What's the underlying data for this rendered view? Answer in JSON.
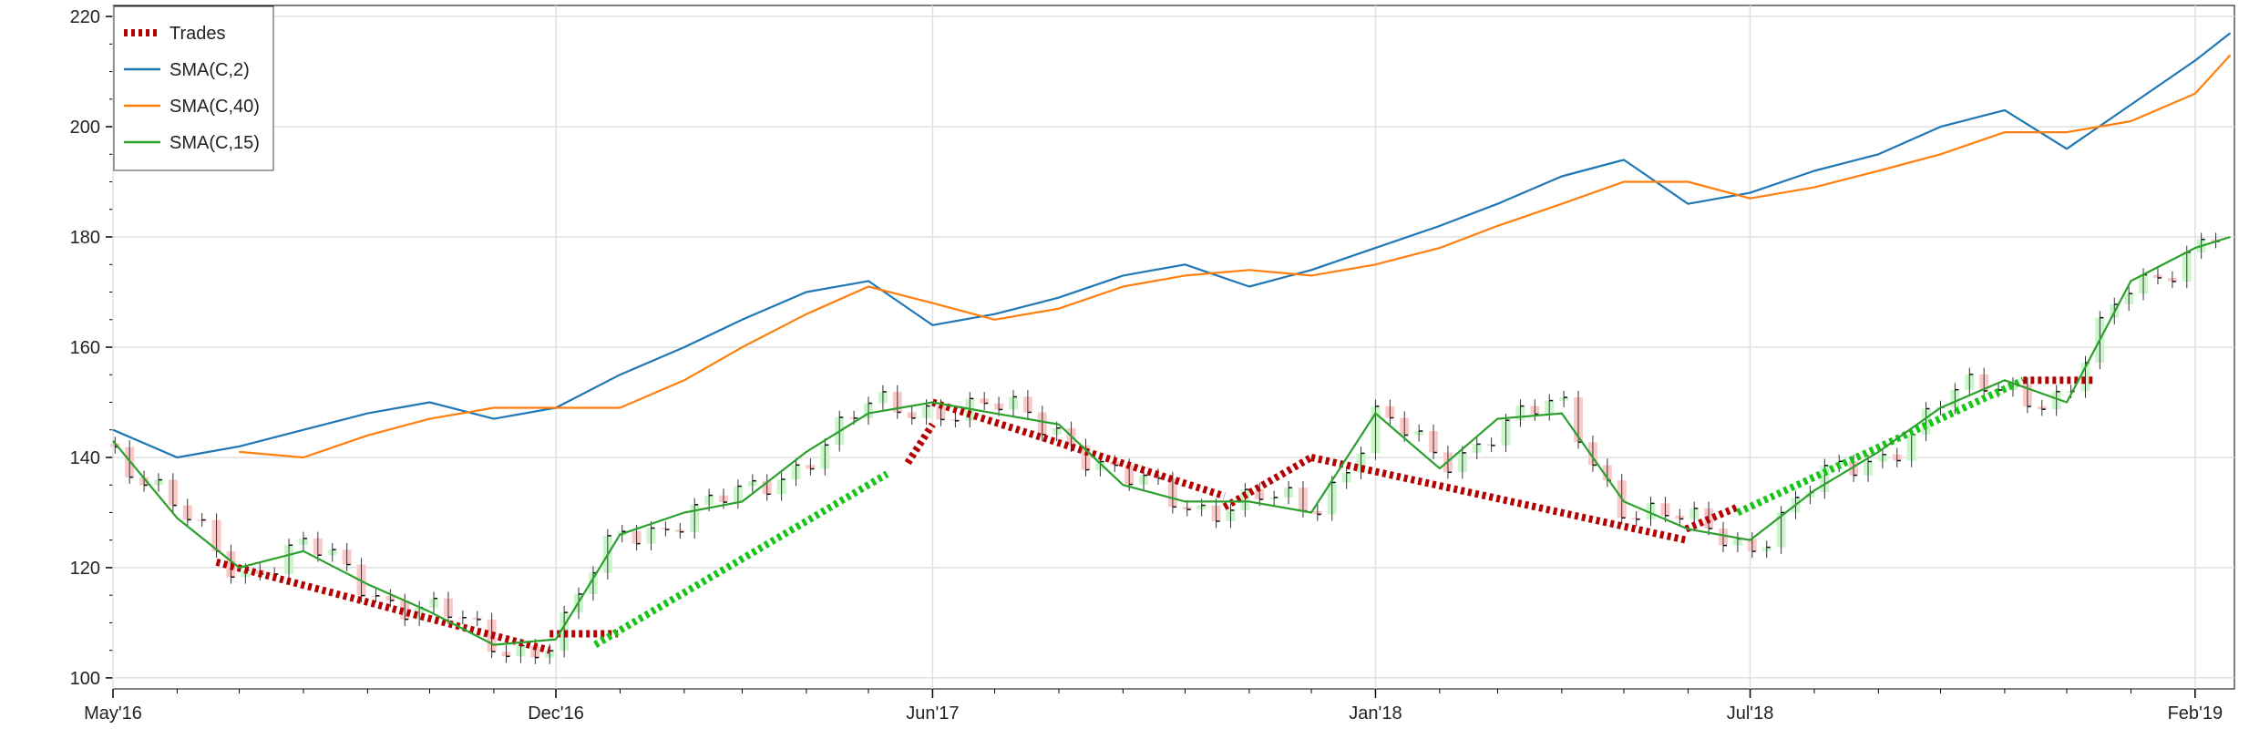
{
  "chart_data": {
    "type": "line",
    "title": "",
    "xlabel": "",
    "ylabel": "",
    "x_ticks": [
      "May'16",
      "Dec'16",
      "Jun'17",
      "Jan'18",
      "Jul'18",
      "Feb'19"
    ],
    "y_ticks": [
      "100",
      "120",
      "140",
      "160",
      "180",
      "200",
      "220"
    ],
    "xlim": [
      "2016-05-01",
      "2019-02-20"
    ],
    "ylim": [
      98,
      222
    ],
    "grid": true,
    "legend_position": "top-left",
    "legend": [
      "Trades",
      "SMA(C,2)",
      "SMA(C,40)",
      "SMA(C,15)"
    ],
    "colors": {
      "trade_loss": "#b30000",
      "trade_win": "#18c418",
      "sma2": "#1f77b4",
      "sma40": "#ff7f0e",
      "sma15": "#2ca02c",
      "up_bar": "#c9f7c9",
      "down_bar": "#fbc8c8",
      "grid": "#e0e0e0"
    },
    "series": [
      {
        "name": "SMA(C,2)",
        "x": [
          "2016-05-01",
          "2016-06-01",
          "2016-07-01",
          "2016-08-01",
          "2016-09-01",
          "2016-10-01",
          "2016-11-01",
          "2016-12-01",
          "2017-01-01",
          "2017-02-01",
          "2017-03-01",
          "2017-04-01",
          "2017-05-01",
          "2017-06-01",
          "2017-07-01",
          "2017-08-01",
          "2017-09-01",
          "2017-10-01",
          "2017-11-01",
          "2017-12-01",
          "2018-01-01",
          "2018-02-01",
          "2018-03-01",
          "2018-04-01",
          "2018-05-01",
          "2018-06-01",
          "2018-07-01",
          "2018-08-01",
          "2018-09-01",
          "2018-10-01",
          "2018-11-01",
          "2018-12-01",
          "2019-01-01",
          "2019-02-01",
          "2019-02-18"
        ],
        "values": [
          145,
          140,
          142,
          145,
          148,
          150,
          147,
          149,
          155,
          160,
          165,
          170,
          172,
          164,
          166,
          169,
          173,
          175,
          171,
          174,
          178,
          182,
          186,
          191,
          194,
          186,
          188,
          192,
          195,
          200,
          203,
          196,
          204,
          212,
          217
        ]
      },
      {
        "name": "SMA(C,40)",
        "x": [
          "2016-07-01",
          "2016-08-01",
          "2016-09-01",
          "2016-10-01",
          "2016-11-01",
          "2016-12-01",
          "2017-01-01",
          "2017-02-01",
          "2017-03-01",
          "2017-04-01",
          "2017-05-01",
          "2017-06-01",
          "2017-07-01",
          "2017-08-01",
          "2017-09-01",
          "2017-10-01",
          "2017-11-01",
          "2017-12-01",
          "2018-01-01",
          "2018-02-01",
          "2018-03-01",
          "2018-04-01",
          "2018-05-01",
          "2018-06-01",
          "2018-07-01",
          "2018-08-01",
          "2018-09-01",
          "2018-10-01",
          "2018-11-01",
          "2018-12-01",
          "2019-01-01",
          "2019-02-01",
          "2019-02-18"
        ],
        "values": [
          141,
          140,
          144,
          147,
          149,
          149,
          149,
          154,
          160,
          166,
          171,
          168,
          165,
          167,
          171,
          173,
          174,
          173,
          175,
          178,
          182,
          186,
          190,
          190,
          187,
          189,
          192,
          195,
          199,
          199,
          201,
          206,
          213
        ]
      },
      {
        "name": "SMA(C,15)",
        "x": [
          "2016-05-01",
          "2016-06-01",
          "2016-07-01",
          "2016-08-01",
          "2016-09-01",
          "2016-10-01",
          "2016-11-01",
          "2016-12-01",
          "2017-01-01",
          "2017-02-01",
          "2017-03-01",
          "2017-04-01",
          "2017-05-01",
          "2017-06-01",
          "2017-07-01",
          "2017-08-01",
          "2017-09-01",
          "2017-10-01",
          "2017-11-01",
          "2017-12-01",
          "2018-01-01",
          "2018-02-01",
          "2018-03-01",
          "2018-04-01",
          "2018-05-01",
          "2018-06-01",
          "2018-07-01",
          "2018-08-01",
          "2018-09-01",
          "2018-10-01",
          "2018-11-01",
          "2018-12-01",
          "2019-01-01",
          "2019-02-01",
          "2019-02-18"
        ],
        "values": [
          143,
          129,
          120,
          123,
          117,
          112,
          106,
          107,
          126,
          130,
          132,
          141,
          148,
          150,
          148,
          146,
          135,
          132,
          132,
          130,
          148,
          138,
          147,
          148,
          132,
          127,
          125,
          134,
          141,
          149,
          154,
          150,
          172,
          178,
          180
        ]
      },
      {
        "name": "Trades",
        "segments": [
          {
            "x": [
              "2016-06-20",
              "2016-11-28"
            ],
            "y": [
              121,
              105
            ],
            "result": "loss"
          },
          {
            "x": [
              "2016-11-28",
              "2016-12-31"
            ],
            "y": [
              108,
              108
            ],
            "result": "loss"
          },
          {
            "x": [
              "2016-12-20",
              "2017-05-10"
            ],
            "y": [
              106,
              137
            ],
            "result": "win"
          },
          {
            "x": [
              "2017-05-20",
              "2017-06-01"
            ],
            "y": [
              139,
              146
            ],
            "result": "loss"
          },
          {
            "x": [
              "2017-06-01",
              "2017-10-20"
            ],
            "y": [
              150,
              133
            ],
            "result": "loss"
          },
          {
            "x": [
              "2017-10-20",
              "2017-12-01"
            ],
            "y": [
              131,
              140
            ],
            "result": "loss"
          },
          {
            "x": [
              "2017-12-01",
              "2018-05-31"
            ],
            "y": [
              140,
              125
            ],
            "result": "loss"
          },
          {
            "x": [
              "2018-05-31",
              "2018-06-25"
            ],
            "y": [
              127,
              131
            ],
            "result": "loss"
          },
          {
            "x": [
              "2018-06-25",
              "2018-11-10"
            ],
            "y": [
              130,
              154
            ],
            "result": "win"
          },
          {
            "x": [
              "2018-11-10",
              "2018-12-15"
            ],
            "y": [
              154,
              154
            ],
            "result": "loss"
          }
        ]
      }
    ]
  }
}
